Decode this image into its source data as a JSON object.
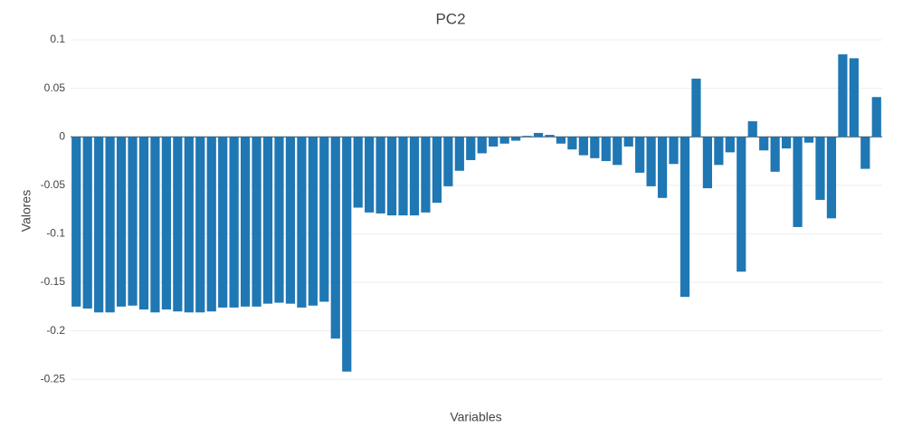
{
  "chart_data": {
    "type": "bar",
    "title": "PC2",
    "xlabel": "Variables",
    "ylabel": "Valores",
    "categories": [
      null,
      null,
      null,
      null,
      null,
      null,
      null,
      null,
      null,
      null,
      null,
      null,
      null,
      null,
      null,
      null,
      null,
      null,
      null,
      null,
      null,
      null,
      null,
      null,
      null,
      null,
      null,
      null,
      null,
      null,
      null,
      null,
      null,
      null,
      null,
      null,
      null,
      null,
      null,
      null,
      null,
      null,
      null,
      null,
      null,
      null,
      null,
      null,
      null,
      null,
      null,
      null,
      null,
      null,
      null,
      null,
      null,
      null,
      null,
      null,
      null,
      null,
      null,
      null,
      null,
      null,
      null,
      null,
      null,
      null,
      null,
      null
    ],
    "values": [
      -0.175,
      -0.177,
      -0.181,
      -0.181,
      -0.175,
      -0.174,
      -0.178,
      -0.181,
      -0.178,
      -0.18,
      -0.181,
      -0.181,
      -0.18,
      -0.176,
      -0.176,
      -0.175,
      -0.175,
      -0.172,
      -0.171,
      -0.172,
      -0.176,
      -0.174,
      -0.17,
      -0.208,
      -0.242,
      -0.073,
      -0.078,
      -0.079,
      -0.081,
      -0.081,
      -0.081,
      -0.078,
      -0.068,
      -0.051,
      -0.035,
      -0.024,
      -0.017,
      -0.01,
      -0.007,
      -0.004,
      0.001,
      0.004,
      0.002,
      -0.007,
      -0.013,
      -0.019,
      -0.022,
      -0.025,
      -0.029,
      -0.01,
      -0.037,
      -0.051,
      -0.063,
      -0.028,
      -0.165,
      0.06,
      -0.053,
      -0.029,
      -0.016,
      -0.139,
      0.016,
      -0.014,
      -0.036,
      -0.012,
      -0.093,
      -0.006,
      -0.065,
      -0.084,
      0.085,
      0.081,
      -0.033,
      0.041
    ],
    "color": "#1f77b4",
    "ylim": [
      -0.26,
      0.1
    ],
    "yticks": [
      -0.25,
      -0.2,
      -0.15,
      -0.1,
      -0.05,
      0,
      0.05,
      0.1
    ],
    "grid": true
  }
}
